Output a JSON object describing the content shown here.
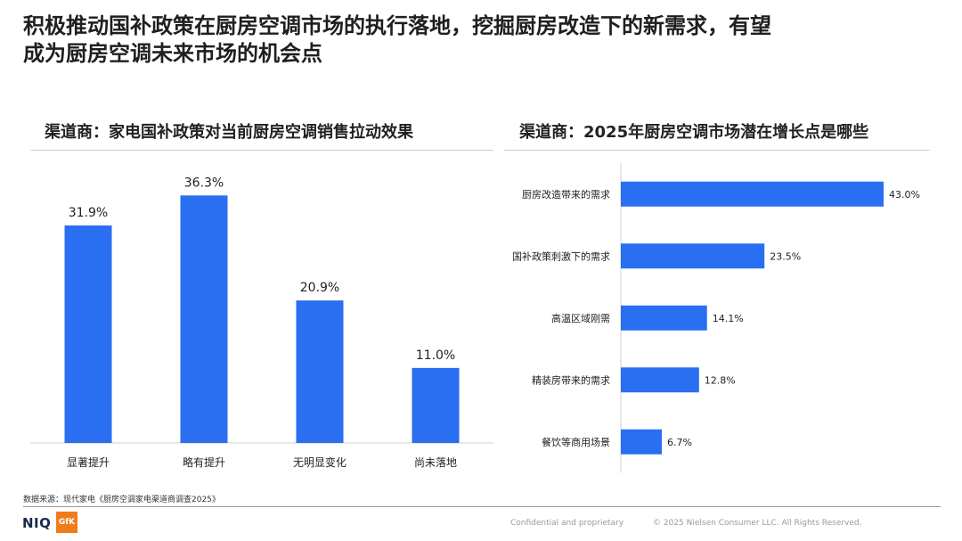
{
  "page": {
    "title_line1": "积极推动国补政策在厨房空调市场的执行落地，挖掘厨房改造下的新需求，有望",
    "title_line2": "成为厨房空调未来市场的机会点",
    "source": "数据来源：现代家电《厨房空调家电渠道商调查2025》",
    "footer_confidential": "Confidential and proprietary",
    "footer_copyright": "© 2025 Nielsen Consumer LLC. All Rights Reserved.",
    "logo_niq": "NIQ",
    "logo_gfk": "GfK"
  },
  "colors": {
    "bar": "#2a6ef2",
    "axis": "#d0d0d0",
    "label": "#222222"
  },
  "chart_data": [
    {
      "type": "bar",
      "title": "渠道商：家电国补政策对当前厨房空调销售拉动效果",
      "categories": [
        "显著提升",
        "略有提升",
        "无明显变化",
        "尚未落地"
      ],
      "values": [
        31.9,
        36.3,
        20.9,
        11.0
      ],
      "value_labels": [
        "31.9%",
        "36.3%",
        "20.9%",
        "11.0%"
      ],
      "ylim": [
        0,
        40
      ],
      "xlabel": "",
      "ylabel": ""
    },
    {
      "type": "bar",
      "orientation": "horizontal",
      "title": "渠道商：2025年厨房空调市场潜在增长点是哪些",
      "categories": [
        "厨房改造带来的需求",
        "国补政策刺激下的需求",
        "高温区域刚需",
        "精装房带来的需求",
        "餐饮等商用场景"
      ],
      "values": [
        43.0,
        23.5,
        14.1,
        12.8,
        6.7
      ],
      "value_labels": [
        "43.0%",
        "23.5%",
        "14.1%",
        "12.8%",
        "6.7%"
      ],
      "xlim": [
        0,
        50
      ],
      "xlabel": "",
      "ylabel": ""
    }
  ]
}
